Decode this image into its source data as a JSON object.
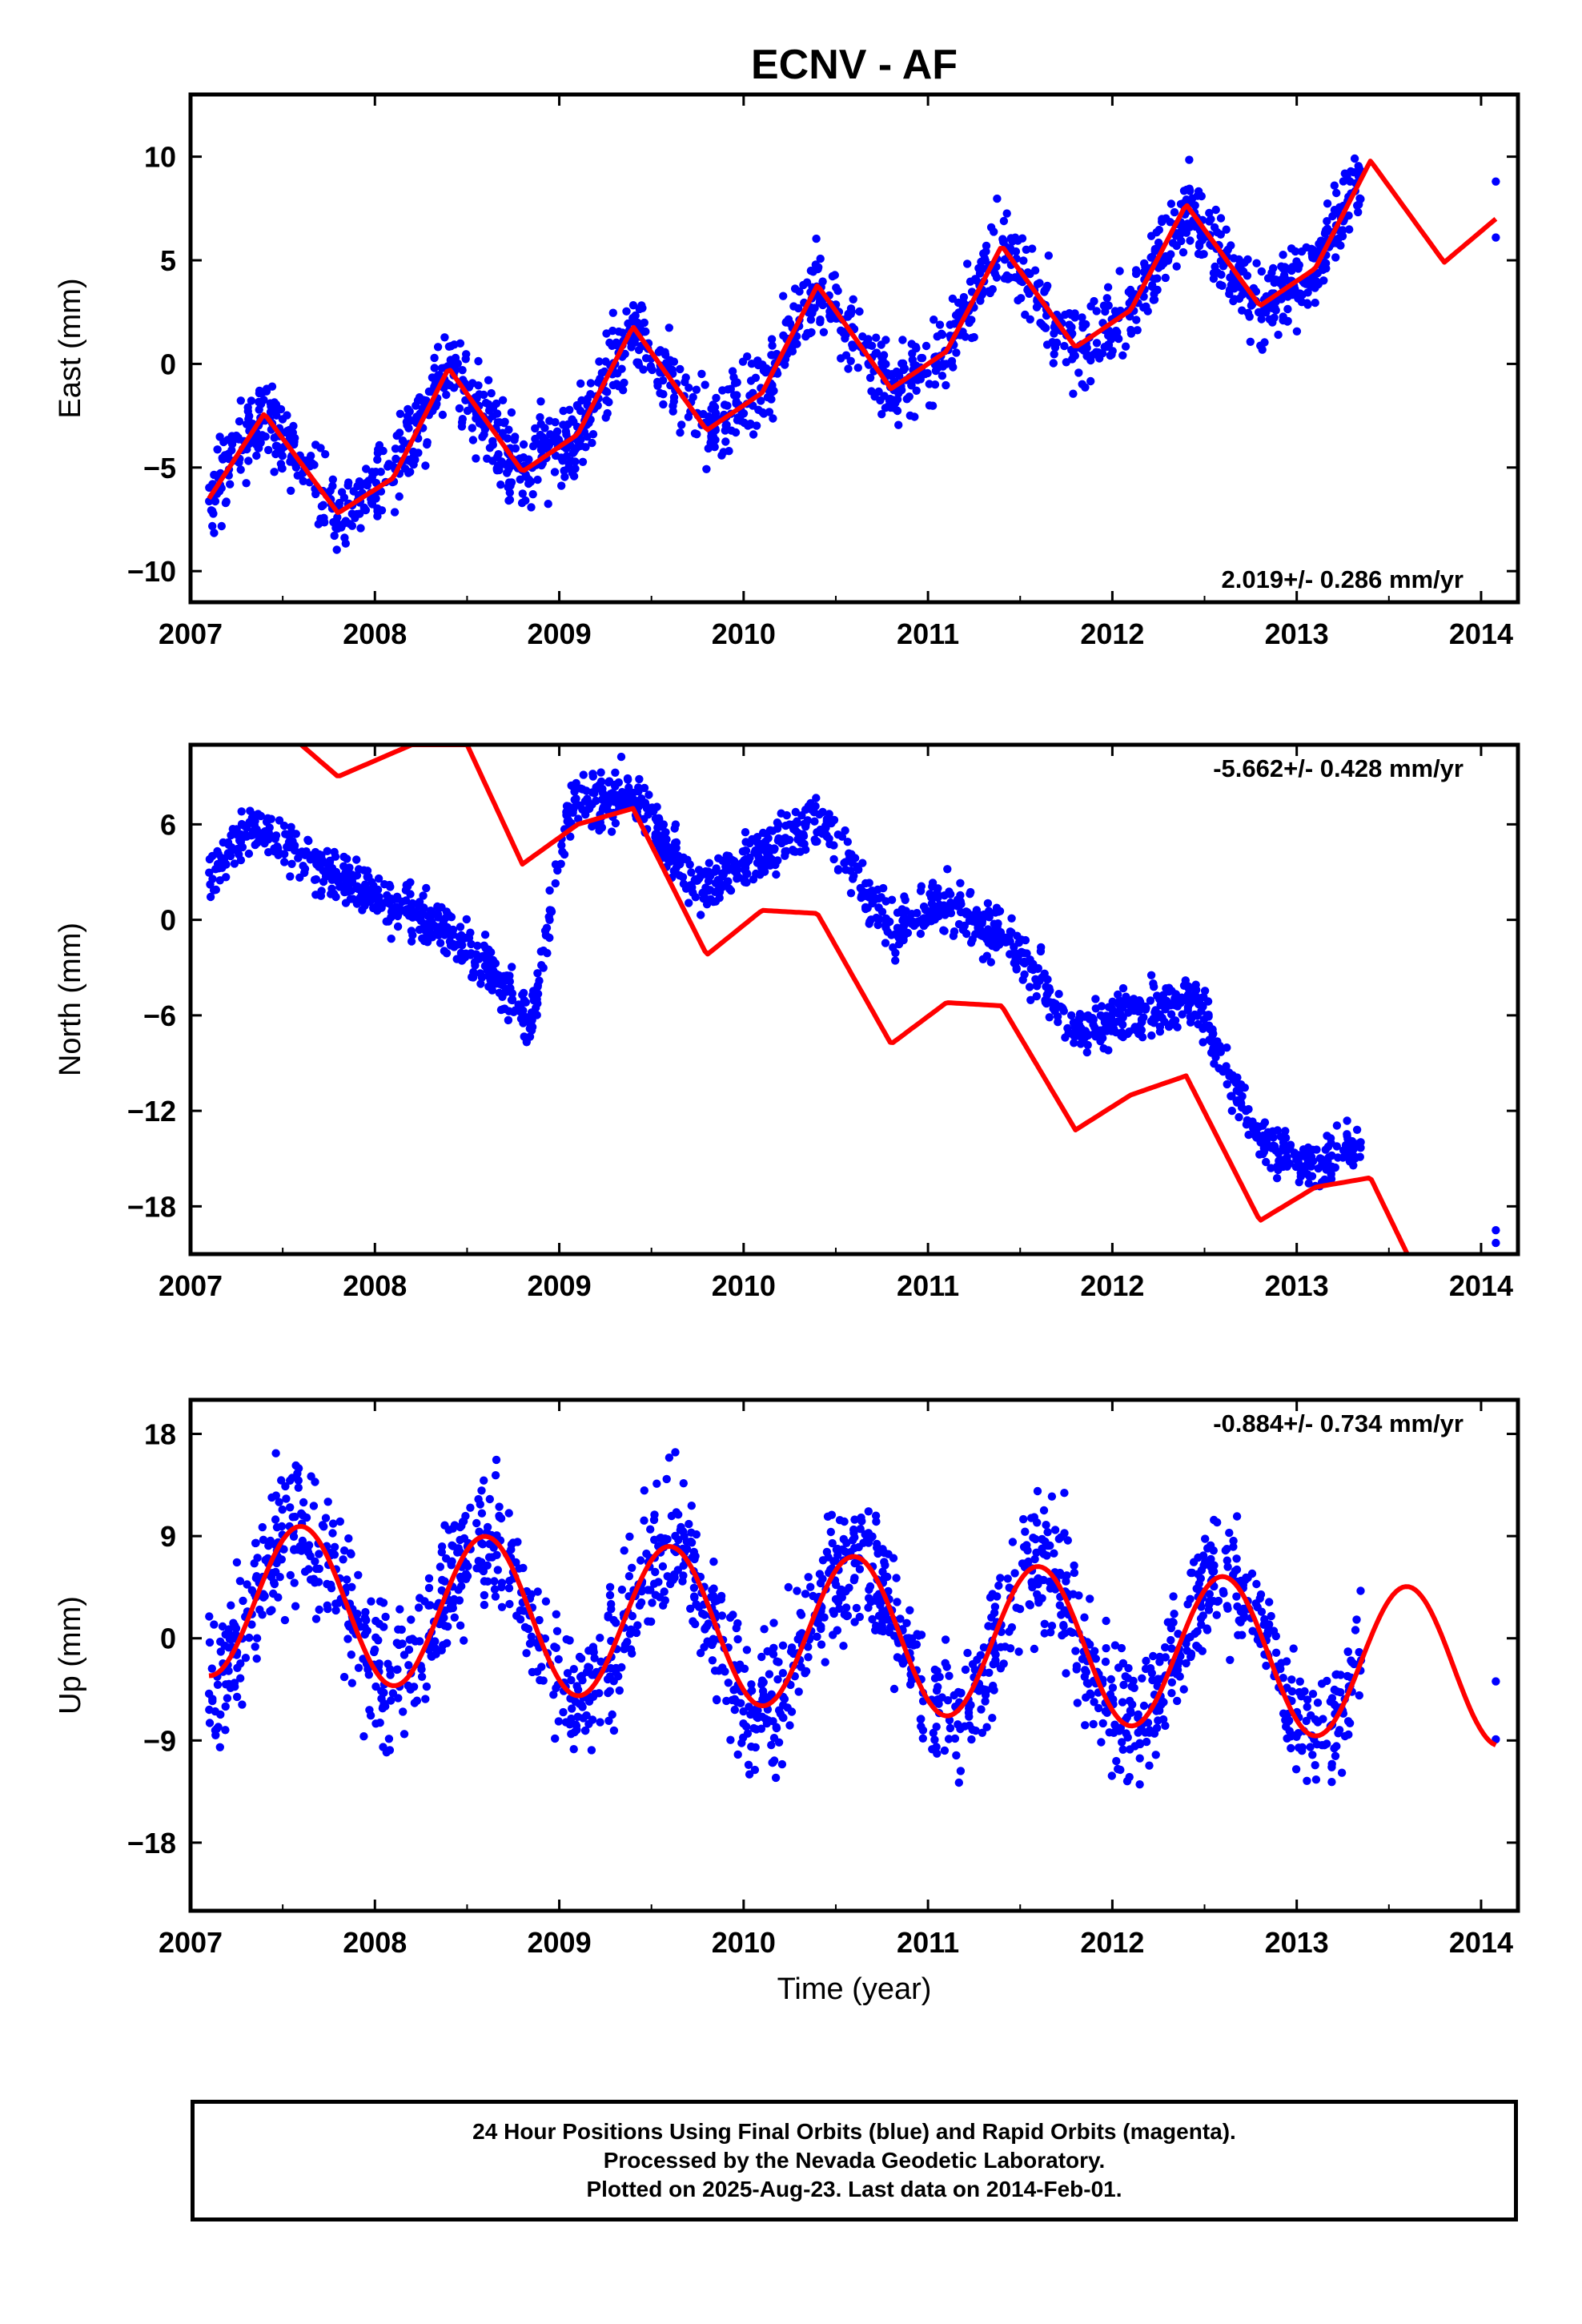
{
  "title": "ECNV - AF",
  "footer": {
    "line1": "24 Hour Positions Using Final Orbits (blue) and Rapid Orbits (magenta).",
    "line2": "Processed by the Nevada Geodetic Laboratory.",
    "line3": "Plotted on 2025-Aug-23. Last data on 2014-Feb-01."
  },
  "chart_data": [
    {
      "type": "scatter",
      "component": "east",
      "ylabel": "East (mm)",
      "xlabel": "",
      "xlim": [
        2007.0,
        2014.2
      ],
      "ylim": [
        -11.5,
        13
      ],
      "xticks": [
        2007,
        2008,
        2009,
        2010,
        2011,
        2012,
        2013,
        2014
      ],
      "yticks": [
        -10,
        -5,
        0,
        5,
        10
      ],
      "rate_label": "2.019+/- 0.286 mm/yr",
      "rate_position": "bottom-right",
      "point_color": "#0000ff",
      "fit_color": "#ff0000",
      "data_span": [
        2007.1,
        2013.35
      ],
      "last_points": [
        {
          "x": 2014.08,
          "y": 8.8
        },
        {
          "x": 2014.08,
          "y": 6.1
        }
      ],
      "trend": {
        "t0": 2007.1,
        "y0": -5.9,
        "rate": 2.019,
        "amp_cos": -1.3,
        "amp_sin": 2.3
      },
      "series": [
        {
          "name": "",
          "kind": "fit",
          "x": [
            2007.1,
            2007.4,
            2007.8,
            2008.1,
            2008.4,
            2008.8,
            2009.1,
            2009.4,
            2009.8,
            2010.1,
            2010.4,
            2010.8,
            2011.1,
            2011.4,
            2011.8,
            2012.1,
            2012.4,
            2012.8,
            2013.1,
            2013.4,
            2013.8,
            2014.08
          ],
          "y": [
            -6.5,
            -2.4,
            -7.2,
            -5.5,
            -0.2,
            -5.2,
            -3.4,
            1.8,
            -3.2,
            -1.4,
            3.8,
            -1.2,
            0.6,
            5.7,
            0.8,
            2.6,
            7.7,
            2.8,
            4.6,
            9.8,
            4.9,
            7.0
          ]
        }
      ]
    },
    {
      "type": "scatter",
      "component": "north",
      "ylabel": "North (mm)",
      "xlabel": "",
      "xlim": [
        2007.0,
        2014.2
      ],
      "ylim": [
        -21,
        11
      ],
      "xticks": [
        2007,
        2008,
        2009,
        2010,
        2011,
        2012,
        2013,
        2014
      ],
      "yticks": [
        -18,
        -12,
        -6,
        0,
        6
      ],
      "rate_label": "-5.662+/- 0.428 mm/yr",
      "rate_position": "top-right",
      "point_color": "#0000ff",
      "fit_color": "#ff0000",
      "data_span": [
        2007.1,
        2013.35
      ],
      "last_points": [
        {
          "x": 2014.08,
          "y": -19.5
        },
        {
          "x": 2014.08,
          "y": -20.3
        }
      ],
      "series": [
        {
          "name": "",
          "kind": "fit",
          "x": [
            2007.6,
            2007.8,
            2008.2,
            2008.5,
            2008.8,
            2009.1,
            2009.4,
            2009.8,
            2010.1,
            2010.4,
            2010.8,
            2011.1,
            2011.4,
            2011.8,
            2012.1,
            2012.4,
            2012.8,
            2013.1,
            2013.4,
            2013.6
          ],
          "y": [
            11,
            9.0,
            11,
            11,
            3.5,
            6.0,
            7.0,
            -2.2,
            0.6,
            0.4,
            -7.8,
            -5.2,
            -5.4,
            -13.2,
            -11.0,
            -9.8,
            -18.9,
            -16.8,
            -16.2,
            -21
          ]
        }
      ],
      "points_outline": [
        {
          "x": 2007.1,
          "y": 3.0
        },
        {
          "x": 2007.35,
          "y": 6.0
        },
        {
          "x": 2007.8,
          "y": 2.5
        },
        {
          "x": 2008.2,
          "y": 0.5
        },
        {
          "x": 2008.5,
          "y": -1.5
        },
        {
          "x": 2008.85,
          "y": -6.5
        },
        {
          "x": 2009.05,
          "y": 7.0
        },
        {
          "x": 2009.4,
          "y": 8.0
        },
        {
          "x": 2009.75,
          "y": 2.0
        },
        {
          "x": 2010.1,
          "y": 4.0
        },
        {
          "x": 2010.4,
          "y": 6.5
        },
        {
          "x": 2010.8,
          "y": -0.5
        },
        {
          "x": 2011.1,
          "y": 1.0
        },
        {
          "x": 2011.45,
          "y": -1.5
        },
        {
          "x": 2011.8,
          "y": -7.0
        },
        {
          "x": 2012.1,
          "y": -6.0
        },
        {
          "x": 2012.45,
          "y": -5.0
        },
        {
          "x": 2012.8,
          "y": -14.0
        },
        {
          "x": 2013.1,
          "y": -15.5
        },
        {
          "x": 2013.35,
          "y": -14.0
        }
      ]
    },
    {
      "type": "scatter",
      "component": "up",
      "ylabel": "Up (mm)",
      "xlabel": "Time (year)",
      "xlim": [
        2007.0,
        2014.2
      ],
      "ylim": [
        -24,
        21
      ],
      "xticks": [
        2007,
        2008,
        2009,
        2010,
        2011,
        2012,
        2013,
        2014
      ],
      "yticks": [
        -18,
        -9,
        0,
        9,
        18
      ],
      "rate_label": "-0.884+/- 0.734 mm/yr",
      "rate_position": "top-right",
      "point_color": "#0000ff",
      "fit_color": "#ff0000",
      "data_span": [
        2007.1,
        2013.35
      ],
      "last_points": [
        {
          "x": 2014.08,
          "y": -3.8
        },
        {
          "x": 2014.08,
          "y": -8.9
        }
      ],
      "trend": {
        "t0": 2007.1,
        "y0": 3.5,
        "rate": -0.884,
        "amp_cos": -6.8,
        "amp_sin": 0.0
      },
      "series": [
        {
          "name": "",
          "kind": "fit",
          "x": [
            2007.1,
            2007.55,
            2008.1,
            2008.55,
            2009.1,
            2009.55,
            2010.1,
            2010.55,
            2011.1,
            2011.55,
            2012.1,
            2012.55,
            2013.1,
            2013.55,
            2014.08
          ],
          "y": [
            -2.8,
            10.0,
            -3.5,
            9.0,
            -4.5,
            8.0,
            -5.3,
            7.2,
            -6.2,
            6.3,
            -7.1,
            5.4,
            -8.0,
            4.5,
            -8.8
          ]
        }
      ]
    }
  ]
}
